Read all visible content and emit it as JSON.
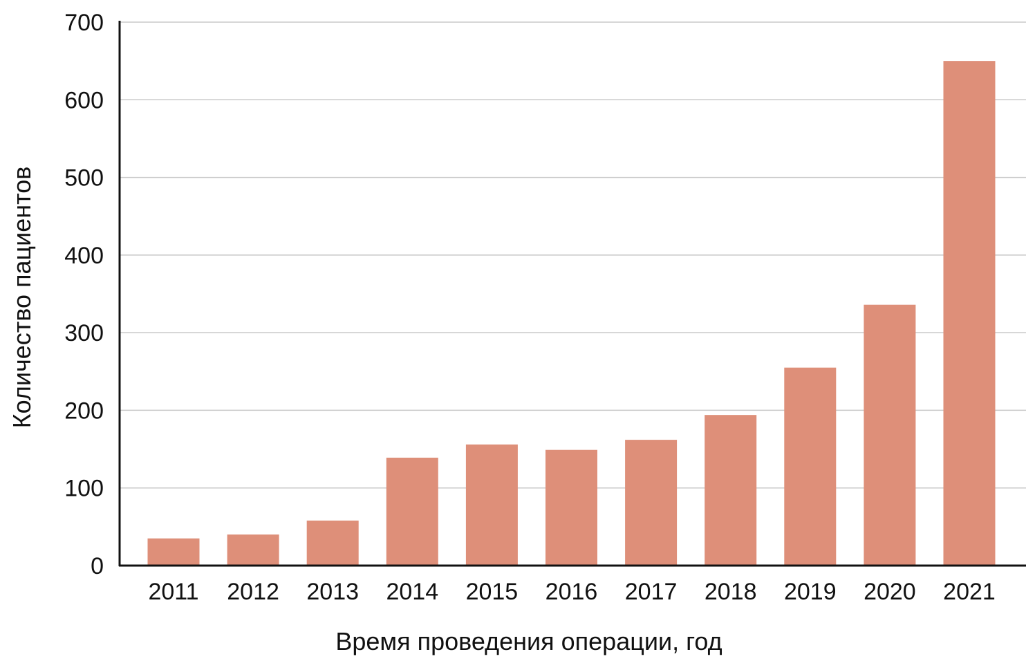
{
  "chart_data": {
    "type": "bar",
    "title": "",
    "xlabel": "Время проведения операции, год",
    "ylabel": "Количество пациентов",
    "categories": [
      "2011",
      "2012",
      "2013",
      "2014",
      "2015",
      "2016",
      "2017",
      "2018",
      "2019",
      "2020",
      "2021"
    ],
    "values": [
      35,
      40,
      58,
      139,
      156,
      149,
      162,
      194,
      255,
      336,
      650
    ],
    "ylim": [
      0,
      700
    ],
    "yticks": [
      0,
      100,
      200,
      300,
      400,
      500,
      600,
      700
    ],
    "grid": true,
    "bar_color": "#de8f79",
    "grid_color": "#c8c8c8"
  }
}
